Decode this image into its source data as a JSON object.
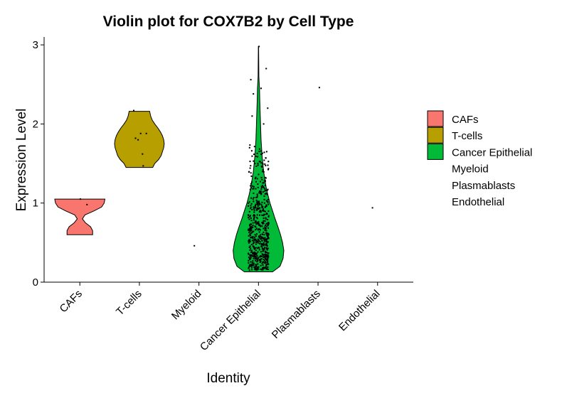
{
  "chart_data": {
    "type": "violin",
    "title": "Violin plot for COX7B2 by Cell Type",
    "xlabel": "Identity",
    "ylabel": "Expression Level",
    "ylim": [
      0,
      3.1
    ],
    "yticks": [
      0,
      1,
      2,
      3
    ],
    "categories": [
      "CAFs",
      "T-cells",
      "Myeloid",
      "Cancer Epithelial",
      "Plasmablasts",
      "Endothelial"
    ],
    "legend": {
      "position": "right",
      "entries": [
        "CAFs",
        "T-cells",
        "Cancer Epithelial",
        "Myeloid",
        "Plasmablasts",
        "Endothelial"
      ]
    },
    "series": [
      {
        "name": "CAFs",
        "color": "#F8766D",
        "violin": [
          [
            0.6,
            0.5
          ],
          [
            0.65,
            0.5
          ],
          [
            0.7,
            0.42
          ],
          [
            0.75,
            0.22
          ],
          [
            0.8,
            0.1
          ],
          [
            0.85,
            0.2
          ],
          [
            0.9,
            0.55
          ],
          [
            0.95,
            0.85
          ],
          [
            1.0,
            0.95
          ],
          [
            1.05,
            0.98
          ]
        ],
        "points": [
          [
            0.02,
            1.05
          ],
          [
            0.28,
            0.98
          ]
        ]
      },
      {
        "name": "T-cells",
        "color": "#B79F00",
        "violin": [
          [
            1.45,
            0.52
          ],
          [
            1.5,
            0.6
          ],
          [
            1.55,
            0.75
          ],
          [
            1.6,
            0.85
          ],
          [
            1.65,
            0.9
          ],
          [
            1.7,
            0.95
          ],
          [
            1.75,
            0.97
          ],
          [
            1.8,
            0.95
          ],
          [
            1.85,
            0.9
          ],
          [
            1.9,
            0.82
          ],
          [
            1.95,
            0.72
          ],
          [
            2.0,
            0.6
          ],
          [
            2.05,
            0.5
          ],
          [
            2.1,
            0.44
          ],
          [
            2.16,
            0.4
          ]
        ],
        "points": [
          [
            -0.22,
            2.17
          ],
          [
            -0.15,
            1.82
          ],
          [
            0.05,
            1.88
          ],
          [
            0.12,
            1.62
          ],
          [
            0.15,
            1.47
          ],
          [
            0.27,
            1.88
          ],
          [
            -0.05,
            1.8
          ]
        ]
      },
      {
        "name": "Myeloid",
        "color": "#00BA38",
        "violin": [],
        "points": [
          [
            -0.18,
            0.46
          ]
        ]
      },
      {
        "name": "Cancer Epithelial",
        "color": "#00BA38",
        "violin": [
          [
            0.13,
            0.55
          ],
          [
            0.2,
            0.84
          ],
          [
            0.3,
            0.96
          ],
          [
            0.4,
            0.99
          ],
          [
            0.5,
            0.94
          ],
          [
            0.6,
            0.86
          ],
          [
            0.7,
            0.76
          ],
          [
            0.8,
            0.65
          ],
          [
            0.9,
            0.55
          ],
          [
            1.0,
            0.45
          ],
          [
            1.1,
            0.37
          ],
          [
            1.2,
            0.3
          ],
          [
            1.3,
            0.25
          ],
          [
            1.4,
            0.2
          ],
          [
            1.5,
            0.17
          ],
          [
            1.6,
            0.14
          ],
          [
            1.7,
            0.12
          ],
          [
            1.8,
            0.1
          ],
          [
            1.9,
            0.09
          ],
          [
            2.0,
            0.08
          ],
          [
            2.1,
            0.07
          ],
          [
            2.2,
            0.06
          ],
          [
            2.3,
            0.05
          ],
          [
            2.45,
            0.04
          ],
          [
            2.6,
            0.015
          ],
          [
            2.8,
            0.01
          ],
          [
            2.98,
            0.005
          ]
        ],
        "points": [
          [
            0.02,
            2.98
          ],
          [
            -0.3,
            2.56
          ],
          [
            0.3,
            2.7
          ],
          [
            0.1,
            2.45
          ],
          [
            -0.2,
            2.38
          ],
          [
            0.36,
            2.2
          ],
          [
            -0.25,
            2.1
          ],
          [
            0.2,
            2.0
          ],
          [
            -0.35,
            1.7
          ],
          [
            0.32,
            1.65
          ]
        ]
      },
      {
        "name": "Plasmablasts",
        "color": "#00BA38",
        "violin": [],
        "points": [
          [
            0.05,
            2.46
          ]
        ]
      },
      {
        "name": "Endothelial",
        "color": "#00BA38",
        "violin": [],
        "points": [
          [
            -0.2,
            0.94
          ]
        ]
      }
    ]
  }
}
